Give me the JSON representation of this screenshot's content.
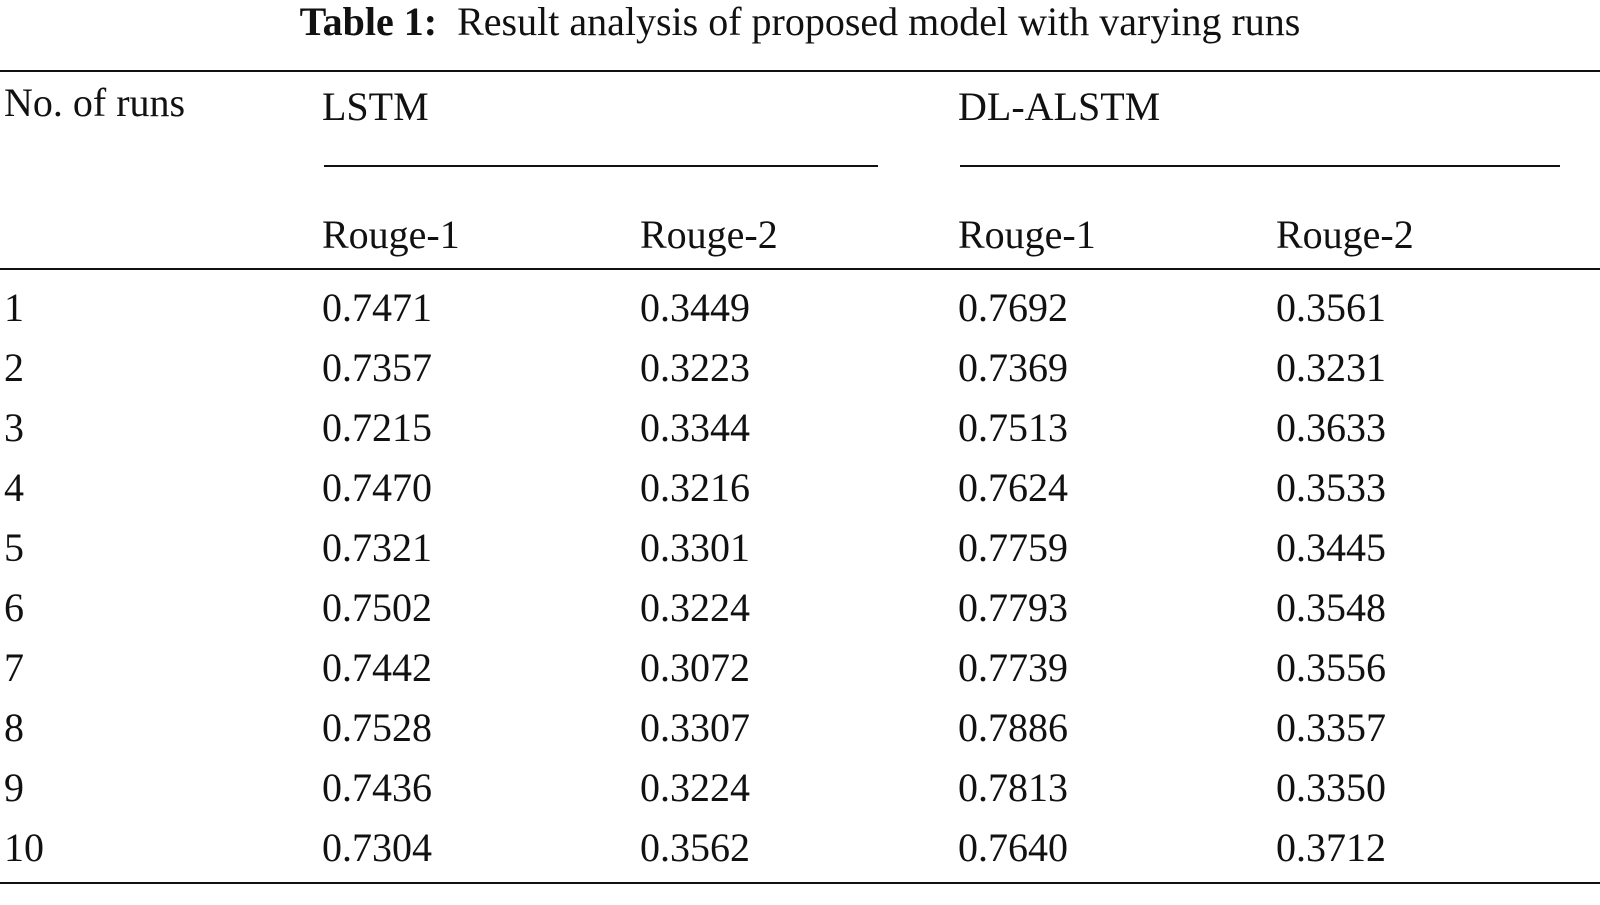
{
  "caption": {
    "label": "Table 1:",
    "text": "Result analysis of proposed model with varying runs"
  },
  "table": {
    "stub_header": "No. of runs",
    "groups": [
      "LSTM",
      "DL-ALSTM"
    ],
    "subheaders": [
      "Rouge-1",
      "Rouge-2",
      "Rouge-1",
      "Rouge-2"
    ],
    "rows": [
      [
        "1",
        "0.7471",
        "0.3449",
        "0.7692",
        "0.3561"
      ],
      [
        "2",
        "0.7357",
        "0.3223",
        "0.7369",
        "0.3231"
      ],
      [
        "3",
        "0.7215",
        "0.3344",
        "0.7513",
        "0.3633"
      ],
      [
        "4",
        "0.7470",
        "0.3216",
        "0.7624",
        "0.3533"
      ],
      [
        "5",
        "0.7321",
        "0.3301",
        "0.7759",
        "0.3445"
      ],
      [
        "6",
        "0.7502",
        "0.3224",
        "0.7793",
        "0.3548"
      ],
      [
        "7",
        "0.7442",
        "0.3072",
        "0.7739",
        "0.3556"
      ],
      [
        "8",
        "0.7528",
        "0.3307",
        "0.7886",
        "0.3357"
      ],
      [
        "9",
        "0.7436",
        "0.3224",
        "0.7813",
        "0.3350"
      ],
      [
        "10",
        "0.7304",
        "0.3562",
        "0.7640",
        "0.3712"
      ]
    ]
  }
}
